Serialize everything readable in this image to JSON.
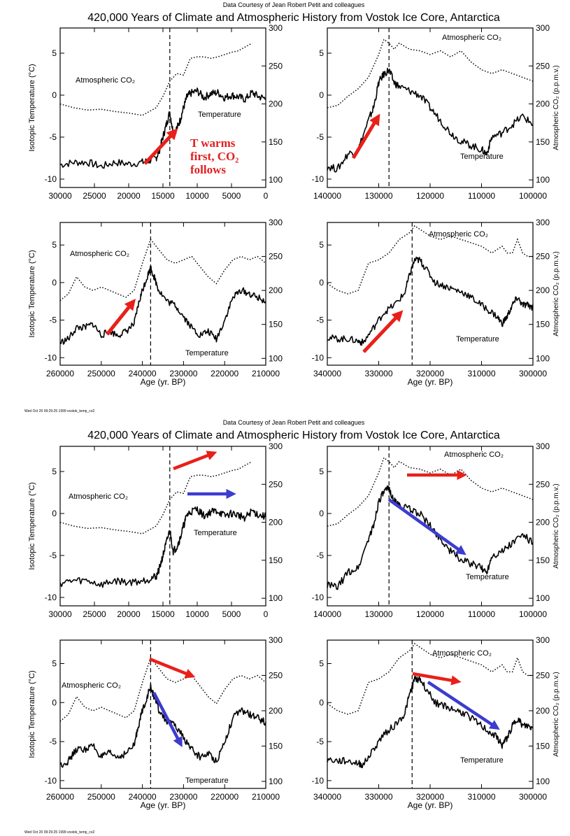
{
  "figures": [
    {
      "credit": "Data Courtesy of Jean Robert Petit and colleagues",
      "title": "420,000 Years of Climate and Atmospheric History from Vostok Ice Core, Antarctica",
      "footer": "Wed Oct 20 09:29:25 1999 vostok_temp_co2",
      "xlabel": "Age (yr. BP)",
      "ylabel_left": "Isotopic Temperature (°C)",
      "ylabel_right": "Atmospheric CO₂ (p.p.m.v.)",
      "annotation": {
        "lines": [
          "T warms",
          "first, CO₂",
          "follows"
        ],
        "color": "#e02020"
      }
    },
    {
      "credit": "Data Courtesy of Jean Robert Petit and colleagues",
      "title": "420,000 Years of Climate and Atmospheric History from Vostok Ice Core, Antarctica",
      "footer": "Wed Oct 20 09:29:25 1999 vostok_temp_co2",
      "xlabel": "Age (yr. BP)",
      "ylabel_left": "Isotopic Temperature (°C)",
      "ylabel_right": "Atmospheric CO₂ (p.p.m.v.)"
    }
  ],
  "colors": {
    "red_arrow": "#e8201a",
    "blue_arrow": "#3c3cd0",
    "ink": "#000000"
  },
  "chart_data": [
    {
      "type": "line",
      "panel": "A",
      "xlim": [
        30000,
        0
      ],
      "xticks": [
        30000,
        25000,
        20000,
        15000,
        10000,
        5000,
        0
      ],
      "ylim_left": [
        -11,
        8
      ],
      "yticks_left": [
        -10,
        -5,
        0,
        5
      ],
      "ylim_right": [
        90,
        300
      ],
      "yticks_right": [
        100,
        150,
        200,
        250,
        300
      ],
      "dashed_line_x": 14000,
      "co2_label": "Atmospheric CO₂",
      "temp_label": "Temperature",
      "temperature": {
        "x": [
          30000,
          28000,
          26000,
          24000,
          22000,
          20000,
          18000,
          17000,
          16000,
          15500,
          15000,
          14500,
          14000,
          13500,
          13000,
          12500,
          12000,
          11500,
          11000,
          10000,
          9000,
          8000,
          7000,
          6000,
          5000,
          4000,
          3000,
          2000,
          1000,
          0
        ],
        "y": [
          -8.3,
          -8.0,
          -8.0,
          -8.5,
          -8.0,
          -8.2,
          -8.0,
          -7.8,
          -7.5,
          -6.5,
          -5.0,
          -3.5,
          -2.0,
          -4.5,
          -4.0,
          -3.0,
          -1.5,
          -0.2,
          0.2,
          0.5,
          -0.3,
          0.2,
          0.3,
          -0.3,
          0.0,
          -0.2,
          -0.5,
          0.3,
          -0.2,
          -0.4
        ]
      },
      "co2": {
        "x": [
          30000,
          28000,
          26000,
          24000,
          22000,
          20000,
          18000,
          16000,
          15000,
          14000,
          13000,
          12000,
          11000,
          10000,
          9000,
          8000,
          7000,
          6000,
          5000,
          4000,
          3000,
          2000
        ],
        "y": [
          200,
          195,
          192,
          193,
          190,
          188,
          185,
          195,
          210,
          230,
          240,
          238,
          260,
          262,
          262,
          260,
          262,
          265,
          268,
          270,
          275,
          280
        ]
      }
    },
    {
      "type": "line",
      "panel": "B",
      "xlim": [
        140000,
        100000
      ],
      "xticks": [
        140000,
        130000,
        120000,
        110000,
        100000
      ],
      "ylim_left": [
        -11,
        8
      ],
      "yticks_left": [
        -10,
        -5,
        0,
        5
      ],
      "ylim_right": [
        90,
        300
      ],
      "yticks_right": [
        100,
        150,
        200,
        250,
        300
      ],
      "dashed_line_x": 128000,
      "co2_label": "Atmospheric CO₂",
      "temp_label": "Temperature",
      "temperature": {
        "x": [
          140000,
          138000,
          136000,
          134000,
          132000,
          131000,
          130000,
          129000,
          128000,
          127000,
          126000,
          124000,
          122000,
          120000,
          118000,
          116000,
          114000,
          112000,
          110000,
          109000,
          108000,
          106000,
          104000,
          102000,
          100000
        ],
        "y": [
          -8.5,
          -8.8,
          -7.0,
          -6.5,
          -3.0,
          -1.5,
          1.5,
          2.5,
          3.0,
          1.5,
          1.0,
          0.5,
          0.0,
          -1.5,
          -3.0,
          -4.5,
          -5.5,
          -6.0,
          -6.5,
          -7.0,
          -5.0,
          -4.5,
          -3.5,
          -2.5,
          -3.5
        ]
      },
      "co2": {
        "x": [
          140000,
          138000,
          136000,
          134000,
          132000,
          130000,
          129000,
          128000,
          127000,
          126000,
          124000,
          122000,
          120000,
          118000,
          116000,
          114000,
          112000,
          110000,
          108000,
          106000,
          104000,
          102000,
          100000
        ],
        "y": [
          195,
          198,
          210,
          220,
          235,
          265,
          285,
          280,
          272,
          280,
          272,
          270,
          265,
          270,
          262,
          270,
          255,
          245,
          240,
          245,
          240,
          235,
          230
        ]
      }
    },
    {
      "type": "line",
      "panel": "C",
      "xlim": [
        260000,
        210000
      ],
      "xticks": [
        260000,
        250000,
        240000,
        230000,
        220000,
        210000
      ],
      "ylim_left": [
        -11,
        8
      ],
      "yticks_left": [
        -10,
        -5,
        0,
        5
      ],
      "ylim_right": [
        90,
        300
      ],
      "yticks_right": [
        100,
        150,
        200,
        250,
        300
      ],
      "dashed_line_x": 238000,
      "co2_label": "Atmospheric CO₂",
      "temp_label": "Temperature",
      "temperature": {
        "x": [
          260000,
          258000,
          256000,
          254000,
          252000,
          250000,
          248000,
          246000,
          244000,
          242000,
          241000,
          240000,
          239000,
          238000,
          237000,
          236000,
          234000,
          232000,
          230000,
          228000,
          226000,
          224000,
          222000,
          220000,
          218000,
          216000,
          214000,
          212000,
          210000
        ],
        "y": [
          -8.0,
          -7.5,
          -6.0,
          -6.0,
          -5.5,
          -7.0,
          -6.5,
          -7.0,
          -6.5,
          -5.5,
          -3.0,
          -1.0,
          0.5,
          2.0,
          0.5,
          -1.0,
          -2.5,
          -3.0,
          -4.5,
          -6.0,
          -7.0,
          -6.5,
          -7.5,
          -5.0,
          -2.0,
          -1.0,
          -1.5,
          -2.0,
          -2.5
        ]
      },
      "co2": {
        "x": [
          260000,
          258000,
          256000,
          254000,
          252000,
          250000,
          248000,
          246000,
          244000,
          242000,
          240000,
          238000,
          236000,
          234000,
          232000,
          230000,
          228000,
          226000,
          224000,
          222000,
          220000,
          218000,
          216000,
          214000,
          212000,
          210000
        ],
        "y": [
          185,
          195,
          220,
          205,
          200,
          205,
          200,
          195,
          190,
          200,
          240,
          275,
          260,
          245,
          240,
          245,
          250,
          235,
          220,
          210,
          230,
          245,
          250,
          245,
          250,
          240
        ]
      }
    },
    {
      "type": "line",
      "panel": "D",
      "xlim": [
        340000,
        300000
      ],
      "xticks": [
        340000,
        330000,
        320000,
        310000,
        300000
      ],
      "ylim_left": [
        -11,
        8
      ],
      "yticks_left": [
        -10,
        -5,
        0,
        5
      ],
      "ylim_right": [
        90,
        300
      ],
      "yticks_right": [
        100,
        150,
        200,
        250,
        300
      ],
      "dashed_line_x": 323500,
      "co2_label": "Atmospheric CO₂",
      "temp_label": "Temperature",
      "temperature": {
        "x": [
          340000,
          338000,
          336000,
          334000,
          333000,
          331000,
          329000,
          327000,
          325000,
          324000,
          323000,
          322000,
          321000,
          319000,
          317000,
          315000,
          313000,
          311000,
          309000,
          307000,
          306000,
          305000,
          304000,
          303000,
          302000,
          301000,
          300000
        ],
        "y": [
          -7.3,
          -7.5,
          -7.5,
          -7.8,
          -8.0,
          -6.0,
          -4.0,
          -3.0,
          -1.5,
          1.0,
          3.0,
          3.0,
          2.0,
          0.0,
          -0.5,
          -1.0,
          -1.5,
          -2.5,
          -3.5,
          -4.5,
          -5.5,
          -4.5,
          -3.0,
          -2.0,
          -3.0,
          -3.0,
          -3.3
        ]
      },
      "co2": {
        "x": [
          340000,
          338000,
          336000,
          334000,
          333000,
          332000,
          330000,
          328000,
          326000,
          324000,
          323000,
          322000,
          320000,
          318000,
          316000,
          314000,
          312000,
          310000,
          308000,
          306000,
          305000,
          304000,
          303000,
          302000,
          301000,
          300000
        ],
        "y": [
          210,
          200,
          195,
          200,
          220,
          240,
          245,
          255,
          275,
          285,
          295,
          290,
          280,
          275,
          280,
          275,
          270,
          265,
          255,
          265,
          255,
          255,
          275,
          255,
          250,
          250
        ]
      }
    }
  ]
}
